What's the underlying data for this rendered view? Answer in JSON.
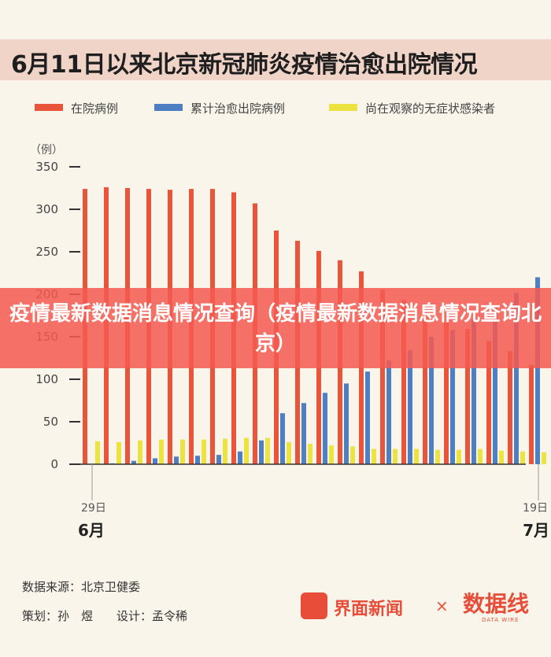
{
  "title": "6月11日以来北京新冠肺炎疫情治愈出院情况",
  "overlay_text": "疫情最新数据消息情况查询（疫情最新数据消息情况查询北京）",
  "footer": {
    "source": "数据来源：北京卫健委",
    "credit": "策划：孙　煜　　设计：孟令稀",
    "logo_main": "界面新闻",
    "times": "×",
    "logo_secondary": "数据线",
    "logo_secondary_sub": "DATA WIRE"
  },
  "colors": {
    "hospitalized": "#e8553b",
    "discharged": "#4e7fc2",
    "asymptomatic": "#ede340",
    "background": "#f9f5ea"
  },
  "chart_data": {
    "type": "bar",
    "title": "6月11日以来北京新冠肺炎疫情治愈出院情况",
    "unit_label": "（例）",
    "ylim": [
      0,
      350
    ],
    "yticks": [
      0,
      50,
      100,
      150,
      200,
      250,
      300,
      350
    ],
    "x_start_label": "29日",
    "x_end_label": "19日",
    "month_start": "6月",
    "month_end": "7月",
    "grid": false,
    "legend_position": "top",
    "series": [
      {
        "name": "在院病例",
        "color": "#e8553b",
        "values": [
          324,
          326,
          325,
          324,
          323,
          324,
          324,
          320,
          307,
          275,
          263,
          251,
          240,
          227,
          205,
          193,
          176,
          167,
          159,
          145,
          133,
          117
        ]
      },
      {
        "name": "累计治愈出院病例",
        "color": "#4e7fc2",
        "values": [
          0,
          1,
          4,
          7,
          9,
          10,
          11,
          15,
          28,
          60,
          72,
          84,
          95,
          109,
          122,
          134,
          150,
          158,
          170,
          184,
          202,
          220
        ]
      },
      {
        "name": "尚在观察的无症状感染者",
        "color": "#ede340",
        "values": [
          27,
          26,
          28,
          29,
          29,
          29,
          30,
          31,
          31,
          26,
          24,
          22,
          21,
          18,
          18,
          18,
          17,
          17,
          18,
          16,
          15,
          14
        ]
      }
    ]
  }
}
